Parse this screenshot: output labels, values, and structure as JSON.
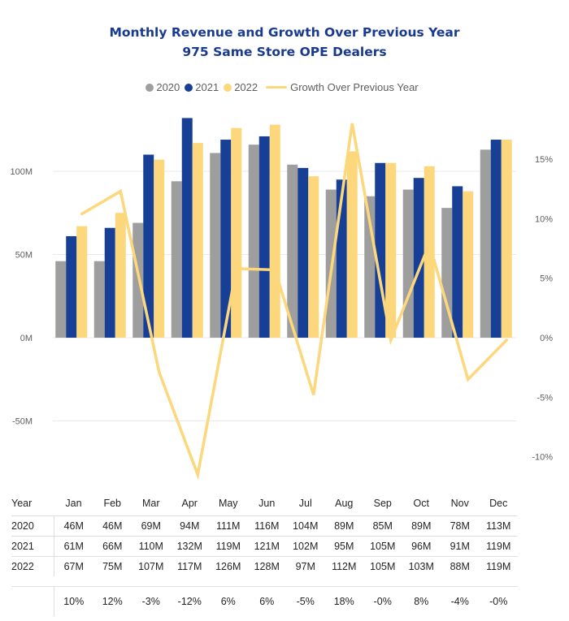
{
  "chart_data": {
    "type": "bar",
    "title": "Monthly Revenue and Growth Over Previous Year",
    "subtitle": "975 Same Store OPE Dealers",
    "categories": [
      "Jan",
      "Feb",
      "Mar",
      "Apr",
      "May",
      "Jun",
      "Jul",
      "Aug",
      "Sep",
      "Oct",
      "Nov",
      "Dec"
    ],
    "series": [
      {
        "name": "2020",
        "values": [
          46,
          46,
          69,
          94,
          111,
          116,
          104,
          89,
          85,
          89,
          78,
          113
        ],
        "color": "#9e9e9e"
      },
      {
        "name": "2021",
        "values": [
          61,
          66,
          110,
          132,
          119,
          121,
          102,
          95,
          105,
          96,
          91,
          119
        ],
        "color": "#173f96"
      },
      {
        "name": "2022",
        "values": [
          67,
          75,
          107,
          117,
          126,
          128,
          97,
          112,
          105,
          103,
          88,
          119
        ],
        "color": "#fcd77b"
      }
    ],
    "line_series": {
      "name": "Growth Over Previous Year",
      "values": [
        10.4,
        12.3,
        -2.9,
        -11.5,
        5.8,
        5.7,
        -4.8,
        18.0,
        -0.2,
        7.9,
        -3.5,
        -0.2
      ],
      "color": "#fcd77b"
    },
    "y_left": {
      "ticks": [
        -50,
        0,
        50,
        100
      ],
      "tick_labels": [
        "-50M",
        "0M",
        "50M",
        "100M"
      ],
      "range": [
        -82,
        138
      ]
    },
    "y_right": {
      "ticks": [
        -10,
        -5,
        0,
        5,
        10,
        15
      ],
      "tick_labels": [
        "-10%",
        "-5%",
        "0%",
        "5%",
        "10%",
        "15%"
      ],
      "range": [
        -11.9,
        19.9
      ]
    },
    "grid": true,
    "legend_position": "top-center"
  },
  "table": {
    "header_label": "Year",
    "months": [
      "Jan",
      "Feb",
      "Mar",
      "Apr",
      "May",
      "Jun",
      "Jul",
      "Aug",
      "Sep",
      "Oct",
      "Nov",
      "Dec"
    ],
    "rows": [
      {
        "label": "2020",
        "cells": [
          "46M",
          "46M",
          "69M",
          "94M",
          "111M",
          "116M",
          "104M",
          "89M",
          "85M",
          "89M",
          "78M",
          "113M"
        ]
      },
      {
        "label": "2021",
        "cells": [
          "61M",
          "66M",
          "110M",
          "132M",
          "119M",
          "121M",
          "102M",
          "95M",
          "105M",
          "96M",
          "91M",
          "119M"
        ]
      },
      {
        "label": "2022",
        "cells": [
          "67M",
          "75M",
          "107M",
          "117M",
          "126M",
          "128M",
          "97M",
          "112M",
          "105M",
          "103M",
          "88M",
          "119M"
        ]
      }
    ],
    "growth_cells": [
      "10%",
      "12%",
      "-3%",
      "-12%",
      "6%",
      "6%",
      "-5%",
      "18%",
      "-0%",
      "8%",
      "-4%",
      "-0%"
    ]
  }
}
